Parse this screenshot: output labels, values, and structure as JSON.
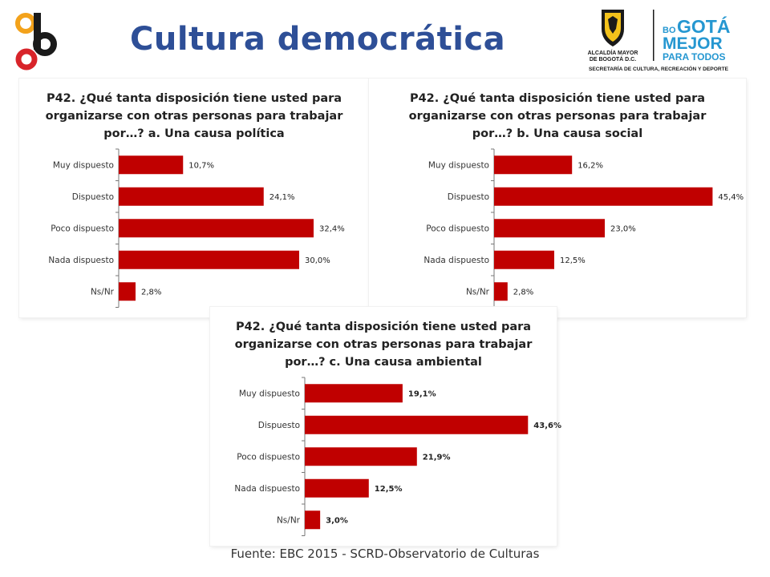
{
  "page": {
    "title": "Cultura democrática",
    "source": "Fuente: EBC 2015 - SCRD-Observatorio de Culturas"
  },
  "logos": {
    "left_name": "culture-logo",
    "right_name": "bogota-logo",
    "right_text": {
      "coat_line1": "ALCALDÍA MAYOR",
      "coat_line2": "DE BOGOTÁ D.C.",
      "bogota_small": "BO",
      "bogota_big": "GOTÁ",
      "mejor": "MEJOR",
      "para_todos": "PARA TODOS",
      "secretaria": "SECRETARÍA DE CULTURA, RECREACIÓN Y DEPORTE"
    },
    "colors": {
      "red": "#d8242a",
      "orange": "#f3a21b",
      "black": "#1a1a1a",
      "blue": "#2597d1"
    }
  },
  "colors": {
    "bar": "#c00000",
    "axis": "#777777",
    "title_blue": "#2e4f97"
  },
  "chart_data": [
    {
      "type": "bar",
      "orientation": "horizontal",
      "title_lines": [
        "P42. ¿Qué tanta disposición tiene usted para",
        "organizarse con otras personas para trabajar",
        "por…? a. Una causa política"
      ],
      "categories": [
        "Muy dispuesto",
        "Dispuesto",
        "Poco dispuesto",
        "Nada dispuesto",
        "Ns/Nr"
      ],
      "values": [
        10.7,
        24.1,
        32.4,
        30.0,
        2.8
      ],
      "labels": [
        "10,7%",
        "24,1%",
        "32,4%",
        "30,0%",
        "2,8%"
      ],
      "xlim": [
        0,
        40
      ]
    },
    {
      "type": "bar",
      "orientation": "horizontal",
      "title_lines": [
        "P42. ¿Qué tanta disposición tiene usted para",
        "organizarse con otras personas para trabajar",
        "por…? b. Una causa social"
      ],
      "categories": [
        "Muy dispuesto",
        "Dispuesto",
        "Poco dispuesto",
        "Nada dispuesto",
        "Ns/Nr"
      ],
      "values": [
        16.2,
        45.4,
        23.0,
        12.5,
        2.8
      ],
      "labels": [
        "16,2%",
        "45,4%",
        "23,0%",
        "12,5%",
        "2,8%"
      ],
      "xlim": [
        0,
        50
      ]
    },
    {
      "type": "bar",
      "orientation": "horizontal",
      "title_lines": [
        "P42. ¿Qué tanta disposición tiene usted para",
        "organizarse con otras personas para trabajar",
        "por…? c. Una causa ambiental"
      ],
      "categories": [
        "Muy dispuesto",
        "Dispuesto",
        "Poco dispuesto",
        "Nada dispuesto",
        "Ns/Nr"
      ],
      "values": [
        19.1,
        43.6,
        21.9,
        12.5,
        3.0
      ],
      "labels": [
        "19,1%",
        "43,6%",
        "21,9%",
        "12,5%",
        "3,0%"
      ],
      "xlim": [
        0,
        47
      ]
    }
  ]
}
